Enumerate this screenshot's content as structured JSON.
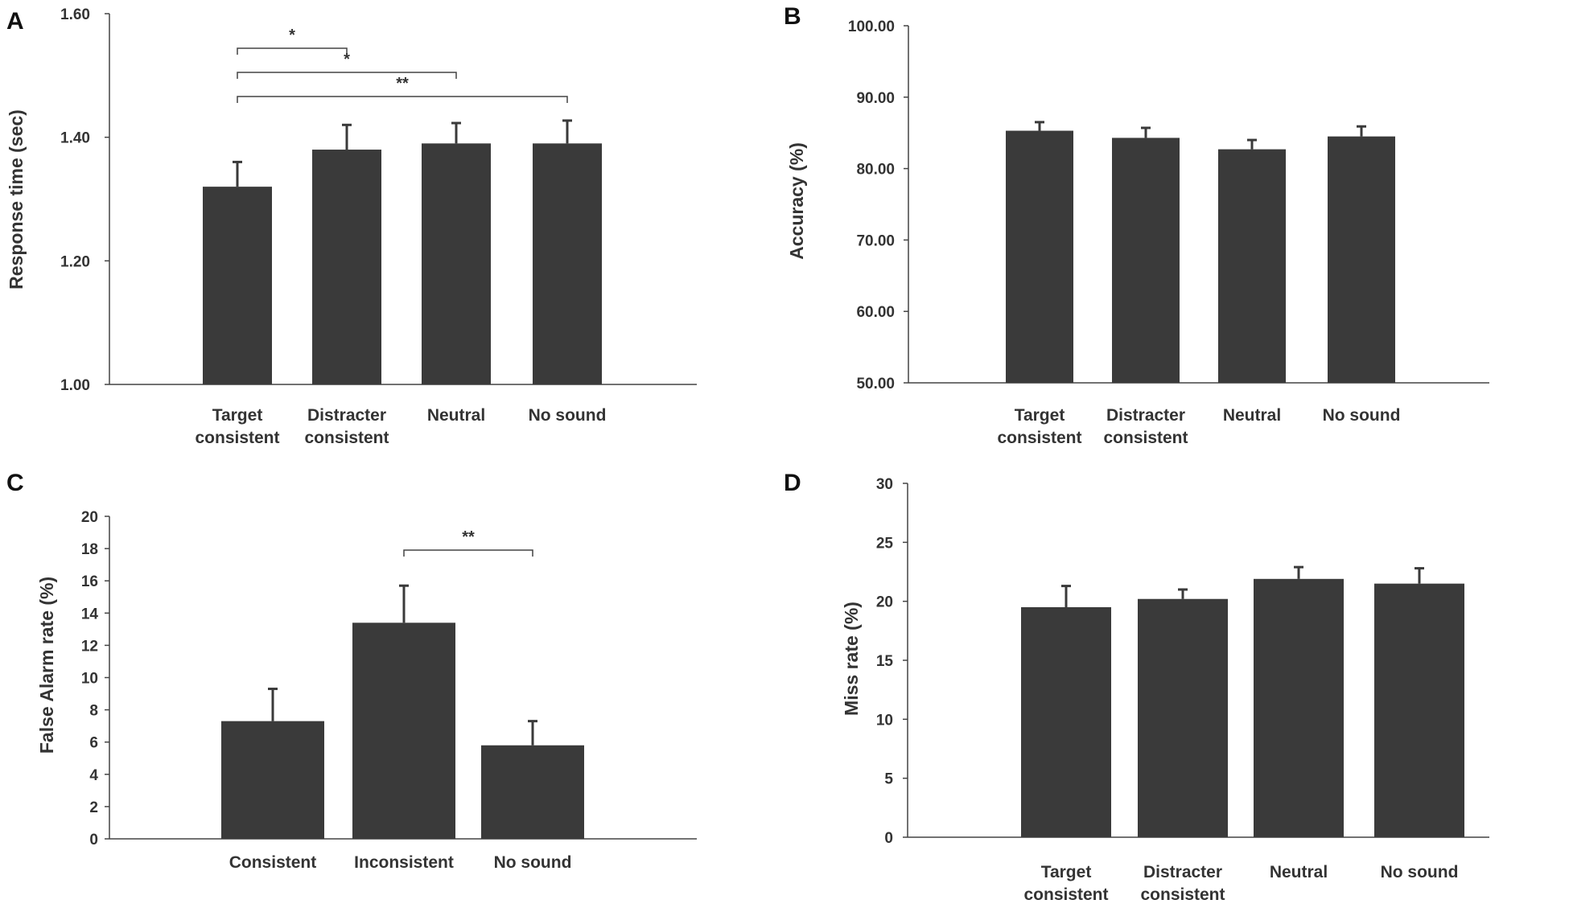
{
  "colors": {
    "bar": "#3a3a3a",
    "axis": "#444444"
  },
  "chart_data": [
    {
      "panel": "A",
      "type": "bar",
      "ylabel": "Response time (sec)",
      "categories": [
        [
          "Target",
          "consistent"
        ],
        [
          "Distracter",
          "consistent"
        ],
        [
          "Neutral"
        ],
        [
          "No sound"
        ]
      ],
      "values": [
        1.32,
        1.38,
        1.39,
        1.39
      ],
      "errors": [
        0.04,
        0.04,
        0.033,
        0.037
      ],
      "ylim": [
        1.0,
        1.6
      ],
      "yticks": [
        "1.00",
        "1.20",
        "1.40",
        "1.60"
      ],
      "significance": [
        {
          "from": 0,
          "to": 1,
          "label": "*"
        },
        {
          "from": 0,
          "to": 2,
          "label": "*"
        },
        {
          "from": 0,
          "to": 3,
          "label": "**"
        }
      ]
    },
    {
      "panel": "B",
      "type": "bar",
      "ylabel": "Accuracy (%)",
      "categories": [
        [
          "Target",
          "consistent"
        ],
        [
          "Distracter",
          "consistent"
        ],
        [
          "Neutral"
        ],
        [
          "No sound"
        ]
      ],
      "values": [
        85.3,
        84.3,
        82.7,
        84.5
      ],
      "errors": [
        1.2,
        1.4,
        1.3,
        1.4
      ],
      "ylim": [
        50,
        100
      ],
      "yticks": [
        "50.00",
        "60.00",
        "70.00",
        "80.00",
        "90.00",
        "100.00"
      ],
      "significance": []
    },
    {
      "panel": "C",
      "type": "bar",
      "ylabel": "False Alarm rate  (%)",
      "categories": [
        [
          "Consistent"
        ],
        [
          "Inconsistent"
        ],
        [
          "No sound"
        ]
      ],
      "values": [
        7.3,
        13.4,
        5.8
      ],
      "errors": [
        2.0,
        2.3,
        1.5
      ],
      "ylim": [
        0,
        20
      ],
      "yticks": [
        "0",
        "2",
        "4",
        "6",
        "8",
        "10",
        "12",
        "14",
        "16",
        "18",
        "20"
      ],
      "significance": [
        {
          "from": 1,
          "to": 2,
          "label": "**"
        }
      ]
    },
    {
      "panel": "D",
      "type": "bar",
      "ylabel": "Miss rate  (%)",
      "categories": [
        [
          "Target",
          "consistent"
        ],
        [
          "Distracter",
          "consistent"
        ],
        [
          "Neutral"
        ],
        [
          "No sound"
        ]
      ],
      "values": [
        19.5,
        20.2,
        21.9,
        21.5
      ],
      "errors": [
        1.8,
        0.8,
        1.0,
        1.3
      ],
      "ylim": [
        0,
        30
      ],
      "yticks": [
        "0",
        "5",
        "10",
        "15",
        "20",
        "25",
        "30"
      ],
      "significance": []
    }
  ]
}
